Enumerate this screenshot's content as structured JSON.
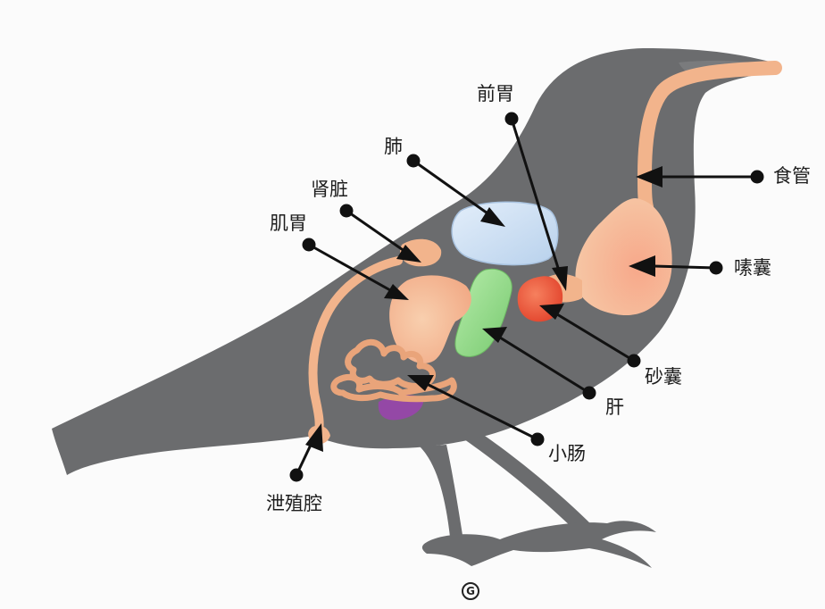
{
  "labels": {
    "proventriculus": "前胃",
    "lung": "肺",
    "kidney": "肾脏",
    "muscular_stomach": "肌胃",
    "esophagus": "食管",
    "crop": "嗉囊",
    "gizzard": "砂囊",
    "liver": "肝",
    "small_intestine": "小肠",
    "cloaca": "泄殖腔"
  },
  "watermark": "G",
  "colors": {
    "background": "#fbfbfb",
    "bird_silhouette": "#6b6c6e",
    "digestive_tract": "#f2b48c",
    "lung": "#c7dcf1",
    "liver": "#92d98a",
    "gizzard": "#ef5a3c",
    "kidney": "#9448a6",
    "leader_line": "#111111"
  }
}
